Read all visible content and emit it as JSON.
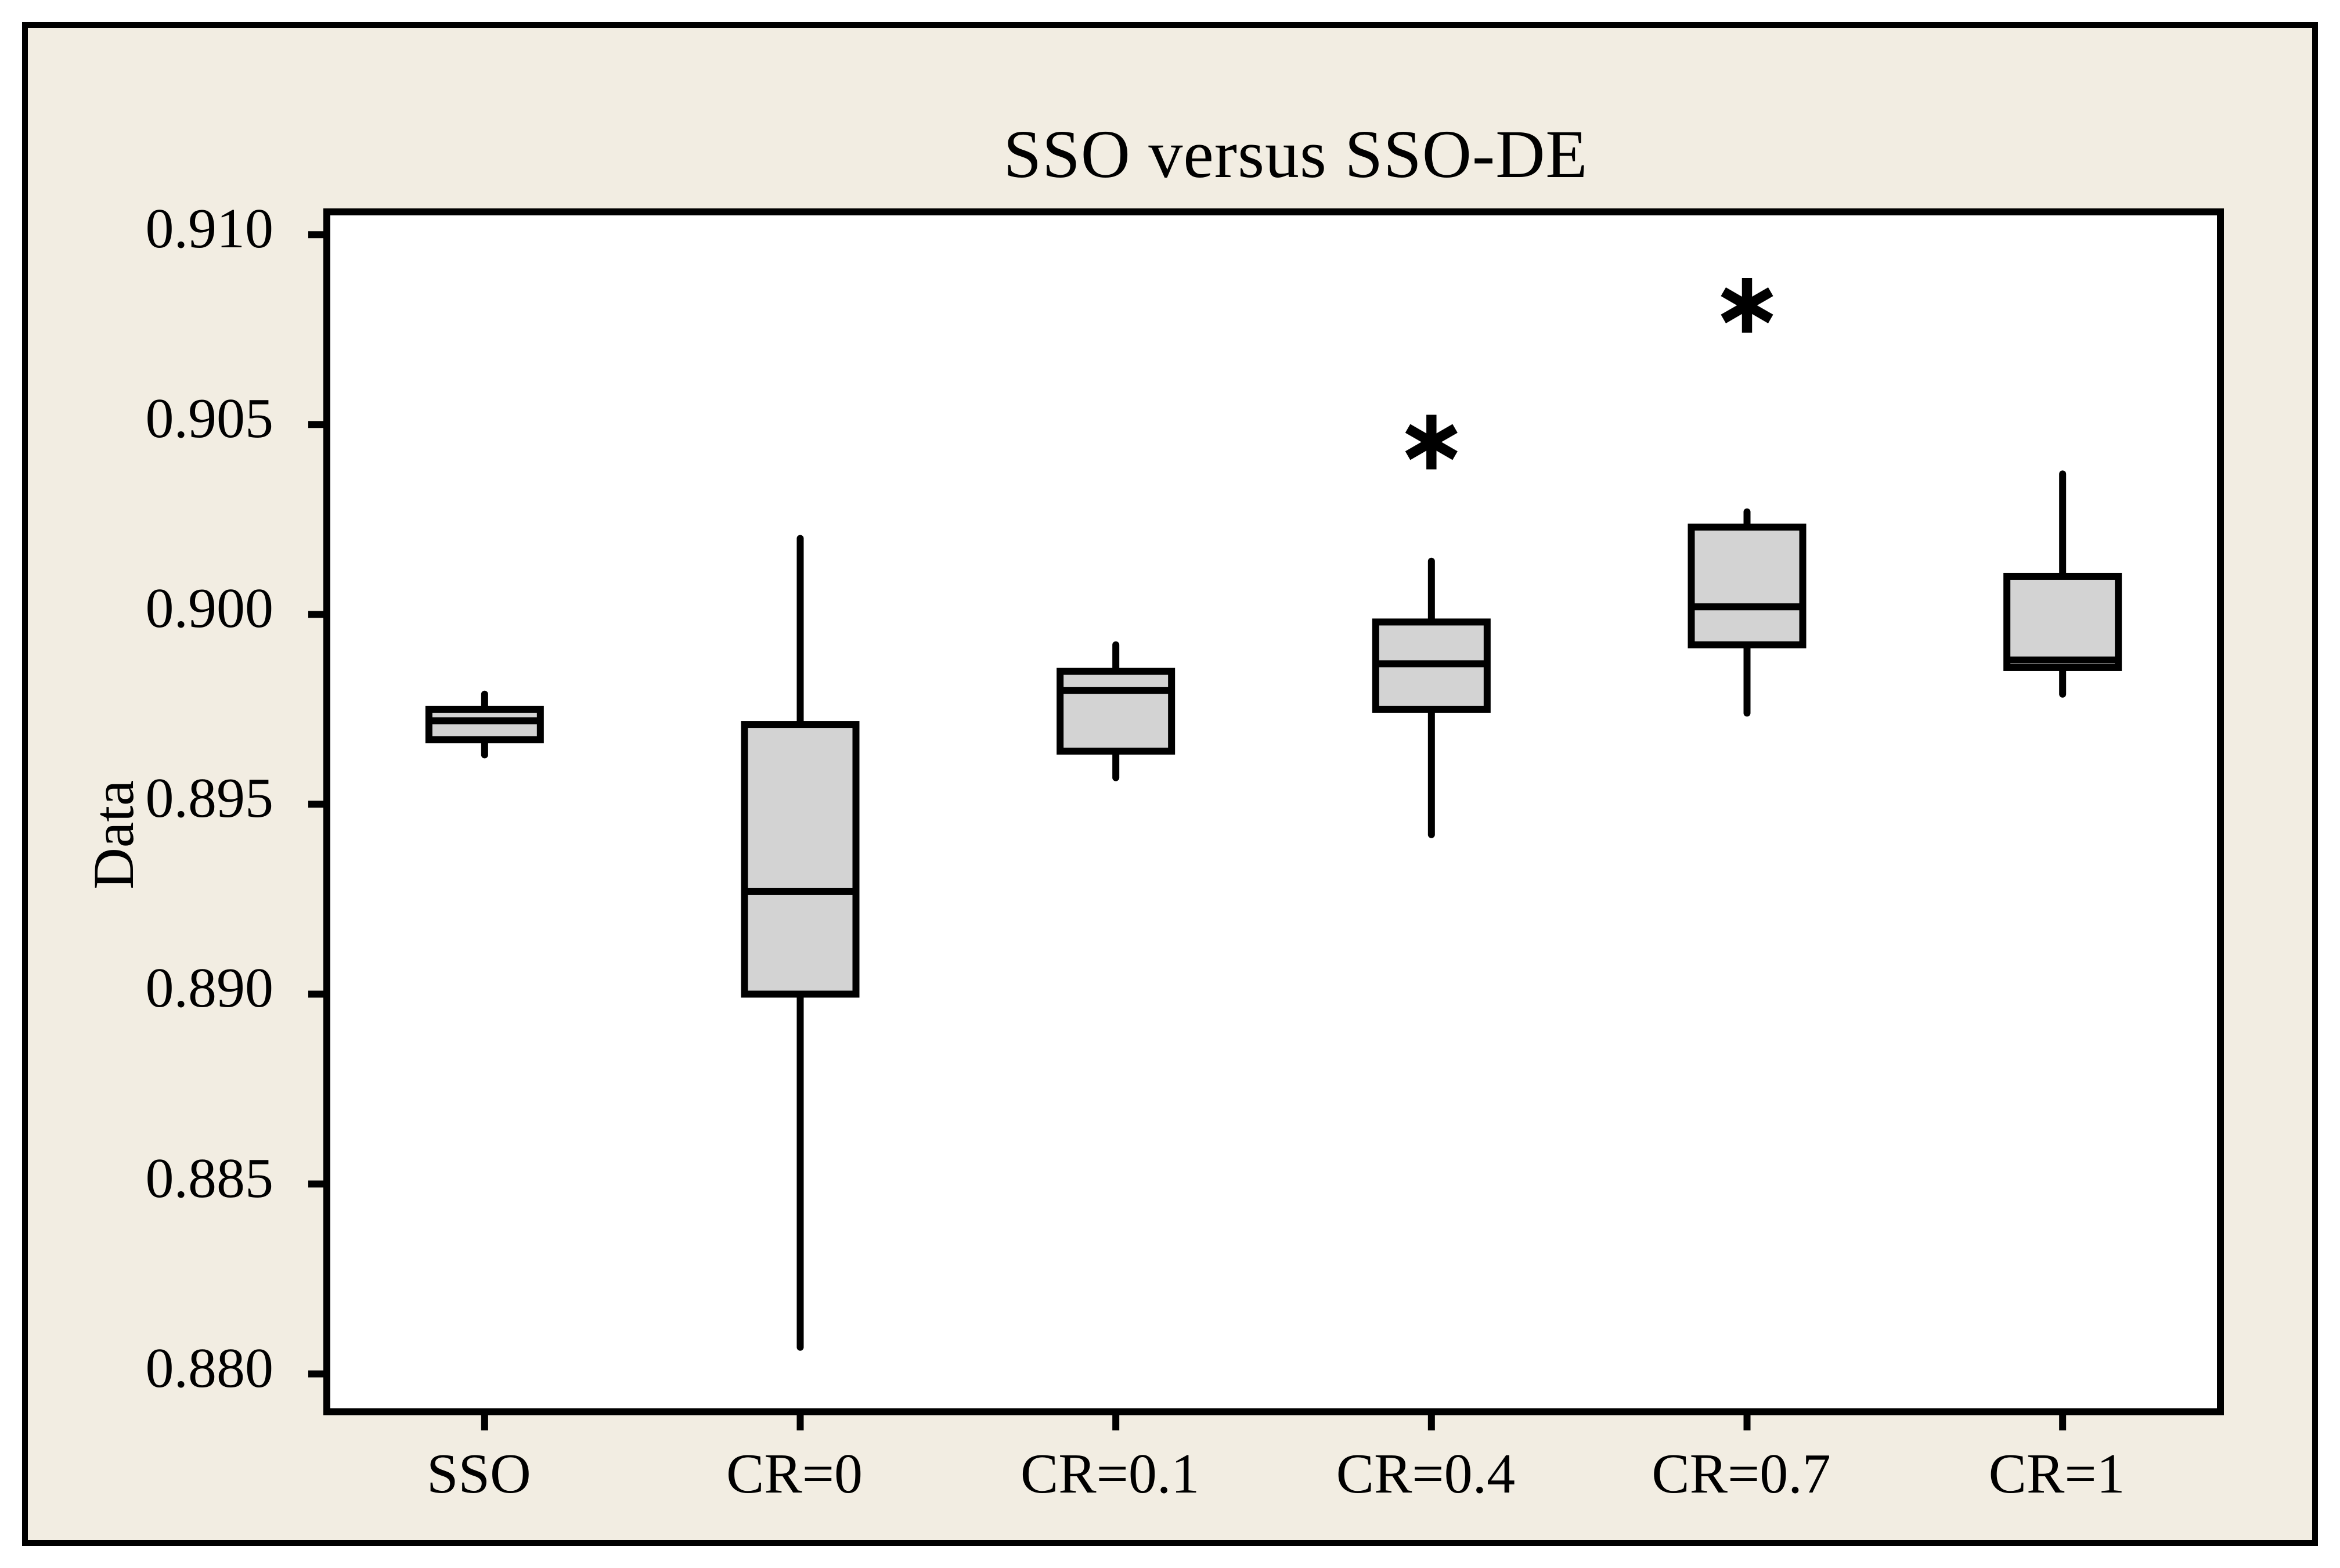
{
  "chart_data": {
    "type": "boxplot",
    "title": "SSO versus SSO-DE",
    "ylabel": "Data",
    "xlabel": "",
    "categories": [
      "SSO",
      "CR=0",
      "CR=0.1",
      "CR=0.4",
      "CR=0.7",
      "CR=1"
    ],
    "ytick_labels": [
      "0.880",
      "0.885",
      "0.890",
      "0.895",
      "0.900",
      "0.905",
      "0.910"
    ],
    "ytick_values": [
      0.88,
      0.885,
      0.89,
      0.895,
      0.9,
      0.905,
      0.91
    ],
    "ylim": [
      0.879,
      0.9106
    ],
    "grid": false,
    "legend": "none",
    "outlier_marker": "∗",
    "series": [
      {
        "label": "SSO",
        "whisker_low": 0.8963,
        "q1": 0.8967,
        "median": 0.8972,
        "q3": 0.8975,
        "whisker_high": 0.8979,
        "outliers": []
      },
      {
        "label": "CR=0",
        "whisker_low": 0.8807,
        "q1": 0.89,
        "median": 0.8927,
        "q3": 0.8971,
        "whisker_high": 0.902,
        "outliers": []
      },
      {
        "label": "CR=0.1",
        "whisker_low": 0.8957,
        "q1": 0.8964,
        "median": 0.898,
        "q3": 0.8985,
        "whisker_high": 0.8992,
        "outliers": []
      },
      {
        "label": "CR=0.4",
        "whisker_low": 0.8942,
        "q1": 0.8975,
        "median": 0.8987,
        "q3": 0.8998,
        "whisker_high": 0.9014,
        "outliers": [
          0.9046
        ]
      },
      {
        "label": "CR=0.7",
        "whisker_low": 0.8974,
        "q1": 0.8992,
        "median": 0.9002,
        "q3": 0.9023,
        "whisker_high": 0.9027,
        "outliers": [
          0.9082
        ]
      },
      {
        "label": "CR=1",
        "whisker_low": 0.8979,
        "q1": 0.8986,
        "median": 0.8988,
        "q3": 0.901,
        "whisker_high": 0.9037,
        "outliers": []
      }
    ],
    "colors": {
      "canvas_bg": "#F2EDE2",
      "plot_bg": "#FFFFFF",
      "box_fill": "#D3D3D3",
      "line": "#000000",
      "text": "#000000"
    }
  }
}
